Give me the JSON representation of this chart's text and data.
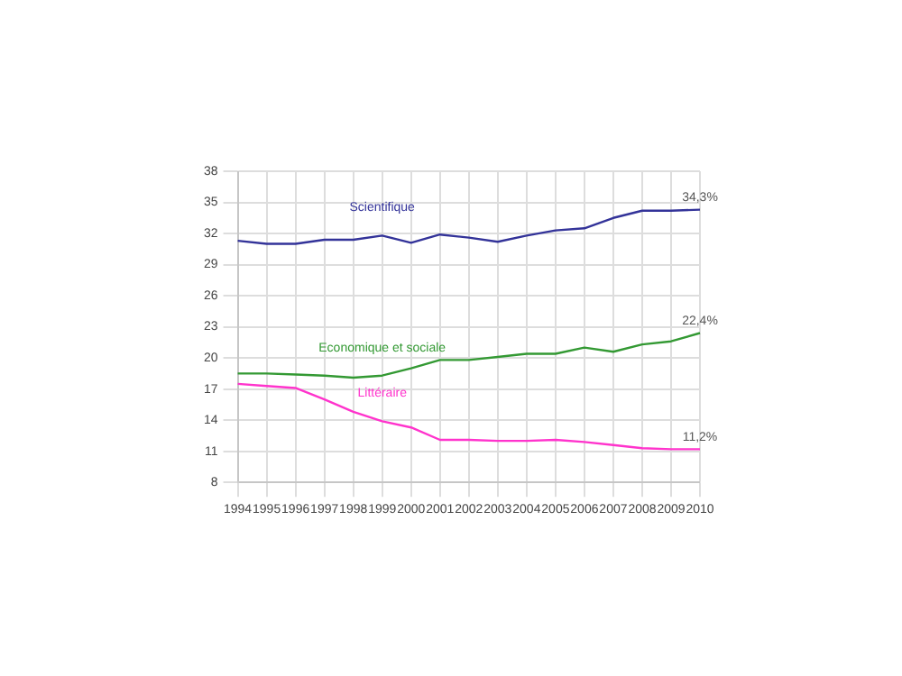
{
  "chart_data": {
    "type": "line",
    "categories": [
      "1994",
      "1995",
      "1996",
      "1997",
      "1998",
      "1999",
      "2000",
      "2001",
      "2002",
      "2003",
      "2004",
      "2005",
      "2006",
      "2007",
      "2008",
      "2009",
      "2010"
    ],
    "series": [
      {
        "name": "Scientifique",
        "color": "#333399",
        "values": [
          31.3,
          31.0,
          31.0,
          31.4,
          31.4,
          31.8,
          31.1,
          31.9,
          31.6,
          31.2,
          31.8,
          32.3,
          32.5,
          33.5,
          34.2,
          34.2,
          34.3
        ],
        "value_labels": [
          null,
          null,
          null,
          null,
          null,
          null,
          null,
          null,
          null,
          null,
          null,
          null,
          null,
          null,
          null,
          null,
          "34,3%"
        ]
      },
      {
        "name": "Economique et sociale",
        "color": "#339933",
        "values": [
          18.5,
          18.5,
          18.4,
          18.3,
          18.1,
          18.3,
          19.0,
          19.8,
          19.8,
          20.1,
          20.4,
          20.4,
          21.0,
          20.6,
          21.3,
          21.6,
          22.4
        ],
        "value_labels": [
          null,
          null,
          null,
          null,
          null,
          null,
          null,
          null,
          null,
          null,
          null,
          null,
          null,
          null,
          null,
          null,
          "22,4%"
        ]
      },
      {
        "name": "Littéraire",
        "color": "#ff33cc",
        "values": [
          17.5,
          17.3,
          17.1,
          16.0,
          14.8,
          13.9,
          13.3,
          12.1,
          12.1,
          12.0,
          12.0,
          12.1,
          11.9,
          11.6,
          11.3,
          11.2,
          11.2
        ],
        "value_labels": [
          null,
          null,
          null,
          null,
          null,
          null,
          null,
          null,
          null,
          null,
          null,
          null,
          null,
          null,
          null,
          null,
          "11,2%"
        ]
      }
    ],
    "ylim": [
      8,
      38
    ],
    "yticks": [
      8,
      11,
      14,
      17,
      20,
      23,
      26,
      29,
      32,
      35,
      38
    ],
    "grid": true,
    "legend": false,
    "marker": "none",
    "line_style": "solid"
  }
}
